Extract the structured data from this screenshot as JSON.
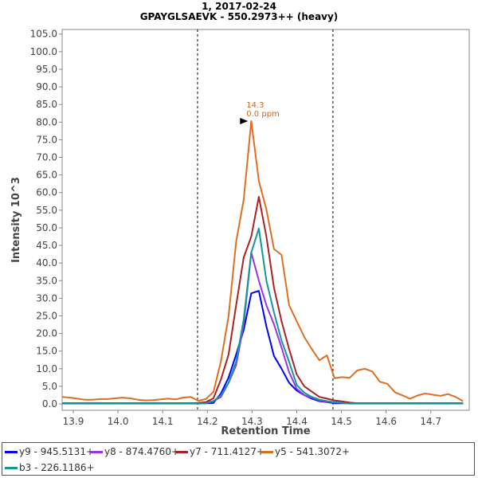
{
  "title": "1, 2017-02-24",
  "subtitle": "GPAYGLSAEVK - 550.2973++ (heavy)",
  "chart_data": {
    "type": "line",
    "title": "1, 2017-02-24",
    "subtitle": "GPAYGLSAEVK - 550.2973++ (heavy)",
    "xlabel": "Retention Time",
    "ylabel": "Intensity  10^3",
    "xlim": [
      13.875,
      14.786
    ],
    "ylim": [
      -1.8,
      106.3
    ],
    "x_start": 13.875,
    "x_step": 0.01693,
    "xticks": [
      "13.9",
      "14.0",
      "14.1",
      "14.2",
      "14.3",
      "14.4",
      "14.5",
      "14.6",
      "14.7"
    ],
    "yticks": [
      "0.0",
      "5.0",
      "10.0",
      "15.0",
      "20.0",
      "25.0",
      "30.0",
      "35.0",
      "40.0",
      "45.0",
      "50.0",
      "55.0",
      "60.0",
      "65.0",
      "70.0",
      "75.0",
      "80.0",
      "85.0",
      "90.0",
      "95.0",
      "100.0",
      "105.0"
    ],
    "boundaries": [
      14.178,
      14.481
    ],
    "annotation": {
      "x": 14.298,
      "y": 80.3,
      "line1": "14.3",
      "line2": "0.0 ppm"
    },
    "series": [
      {
        "name": "y9 - 945.5131+",
        "color": "#0000ff",
        "values": [
          0.2,
          0.2,
          0.2,
          0.2,
          0.2,
          0.2,
          0.2,
          0.2,
          0.2,
          0.2,
          0.2,
          0.2,
          0.2,
          0.2,
          0.2,
          0.2,
          0.2,
          0.2,
          0.2,
          0.2,
          0.3,
          3,
          7.5,
          14,
          21,
          31.4,
          32.1,
          22,
          13.6,
          10,
          6,
          3.8,
          2.5,
          1.5,
          0.8,
          0.5,
          0.2,
          0.2,
          0.2,
          0.2,
          0.2,
          0.2,
          0.2,
          0.2,
          0.2,
          0.2,
          0.2,
          0.2,
          0.2,
          0.2,
          0.2,
          0.2,
          0.2,
          0.2
        ]
      },
      {
        "name": "y8 - 874.4760+",
        "color": "#9933ee",
        "values": [
          0.2,
          0.2,
          0.2,
          0.2,
          0.2,
          0.2,
          0.2,
          0.2,
          0.2,
          0.2,
          0.2,
          0.2,
          0.2,
          0.2,
          0.2,
          0.2,
          0.2,
          0.2,
          0.2,
          0.3,
          0.8,
          2,
          6,
          11,
          22.6,
          43,
          35,
          28,
          22.6,
          16,
          9,
          4.3,
          2.5,
          1.8,
          1.0,
          0.6,
          0.4,
          0.3,
          0.2,
          0.2,
          0.2,
          0.2,
          0.2,
          0.2,
          0.2,
          0.2,
          0.2,
          0.2,
          0.2,
          0.2,
          0.2,
          0.2,
          0.2,
          0.2
        ]
      },
      {
        "name": "y7 - 711.4127+",
        "color": "#aa2222",
        "values": [
          0.2,
          0.2,
          0.2,
          0.2,
          0.2,
          0.2,
          0.2,
          0.2,
          0.2,
          0.2,
          0.2,
          0.2,
          0.2,
          0.2,
          0.2,
          0.2,
          0.2,
          0.2,
          0.3,
          0.5,
          1.6,
          7,
          14,
          28,
          41.6,
          47.5,
          58.8,
          47.5,
          33,
          23.5,
          15.6,
          8.4,
          5,
          3.5,
          2.0,
          1.5,
          1.0,
          0.7,
          0.4,
          0.2,
          0.2,
          0.2,
          0.2,
          0.2,
          0.2,
          0.2,
          0.2,
          0.2,
          0.2,
          0.2,
          0.2,
          0.2,
          0.2,
          0.2
        ]
      },
      {
        "name": "y5 - 541.3072+",
        "color": "#dd6f22",
        "values": [
          2.0,
          1.8,
          1.5,
          1.2,
          1.2,
          1.4,
          1.4,
          1.6,
          1.8,
          1.6,
          1.2,
          1.0,
          1.1,
          1.3,
          1.5,
          1.3,
          1.8,
          2.0,
          0.9,
          1.4,
          3.4,
          12.2,
          24.9,
          46,
          58,
          80.3,
          63.3,
          55.2,
          44,
          42.3,
          28,
          23.5,
          19,
          15.6,
          12.4,
          13.8,
          7.3,
          7.6,
          7.4,
          9.5,
          10.0,
          9.2,
          6.3,
          5.7,
          3.3,
          2.4,
          1.5,
          2.4,
          3.0,
          2.6,
          2.3,
          2.8,
          2.0,
          0.8
        ]
      },
      {
        "name": "b3 - 226.1186+",
        "color": "#119999",
        "values": [
          0.1,
          0.1,
          0.1,
          0.1,
          0.1,
          0.1,
          0.1,
          0.1,
          0.1,
          0.1,
          0.1,
          0.1,
          0.1,
          0.1,
          0.1,
          0.1,
          0.1,
          0.1,
          0.1,
          0.2,
          0.8,
          2.5,
          6,
          12,
          24,
          43,
          49.8,
          35,
          26,
          18,
          12,
          5.4,
          3.2,
          2.0,
          1.2,
          0.8,
          0.5,
          0.3,
          0.1,
          0.1,
          0.1,
          0.1,
          0.1,
          0.1,
          0.1,
          0.1,
          0.1,
          0.1,
          0.1,
          0.1,
          0.1,
          0.1,
          0.1,
          0.1
        ]
      }
    ]
  }
}
